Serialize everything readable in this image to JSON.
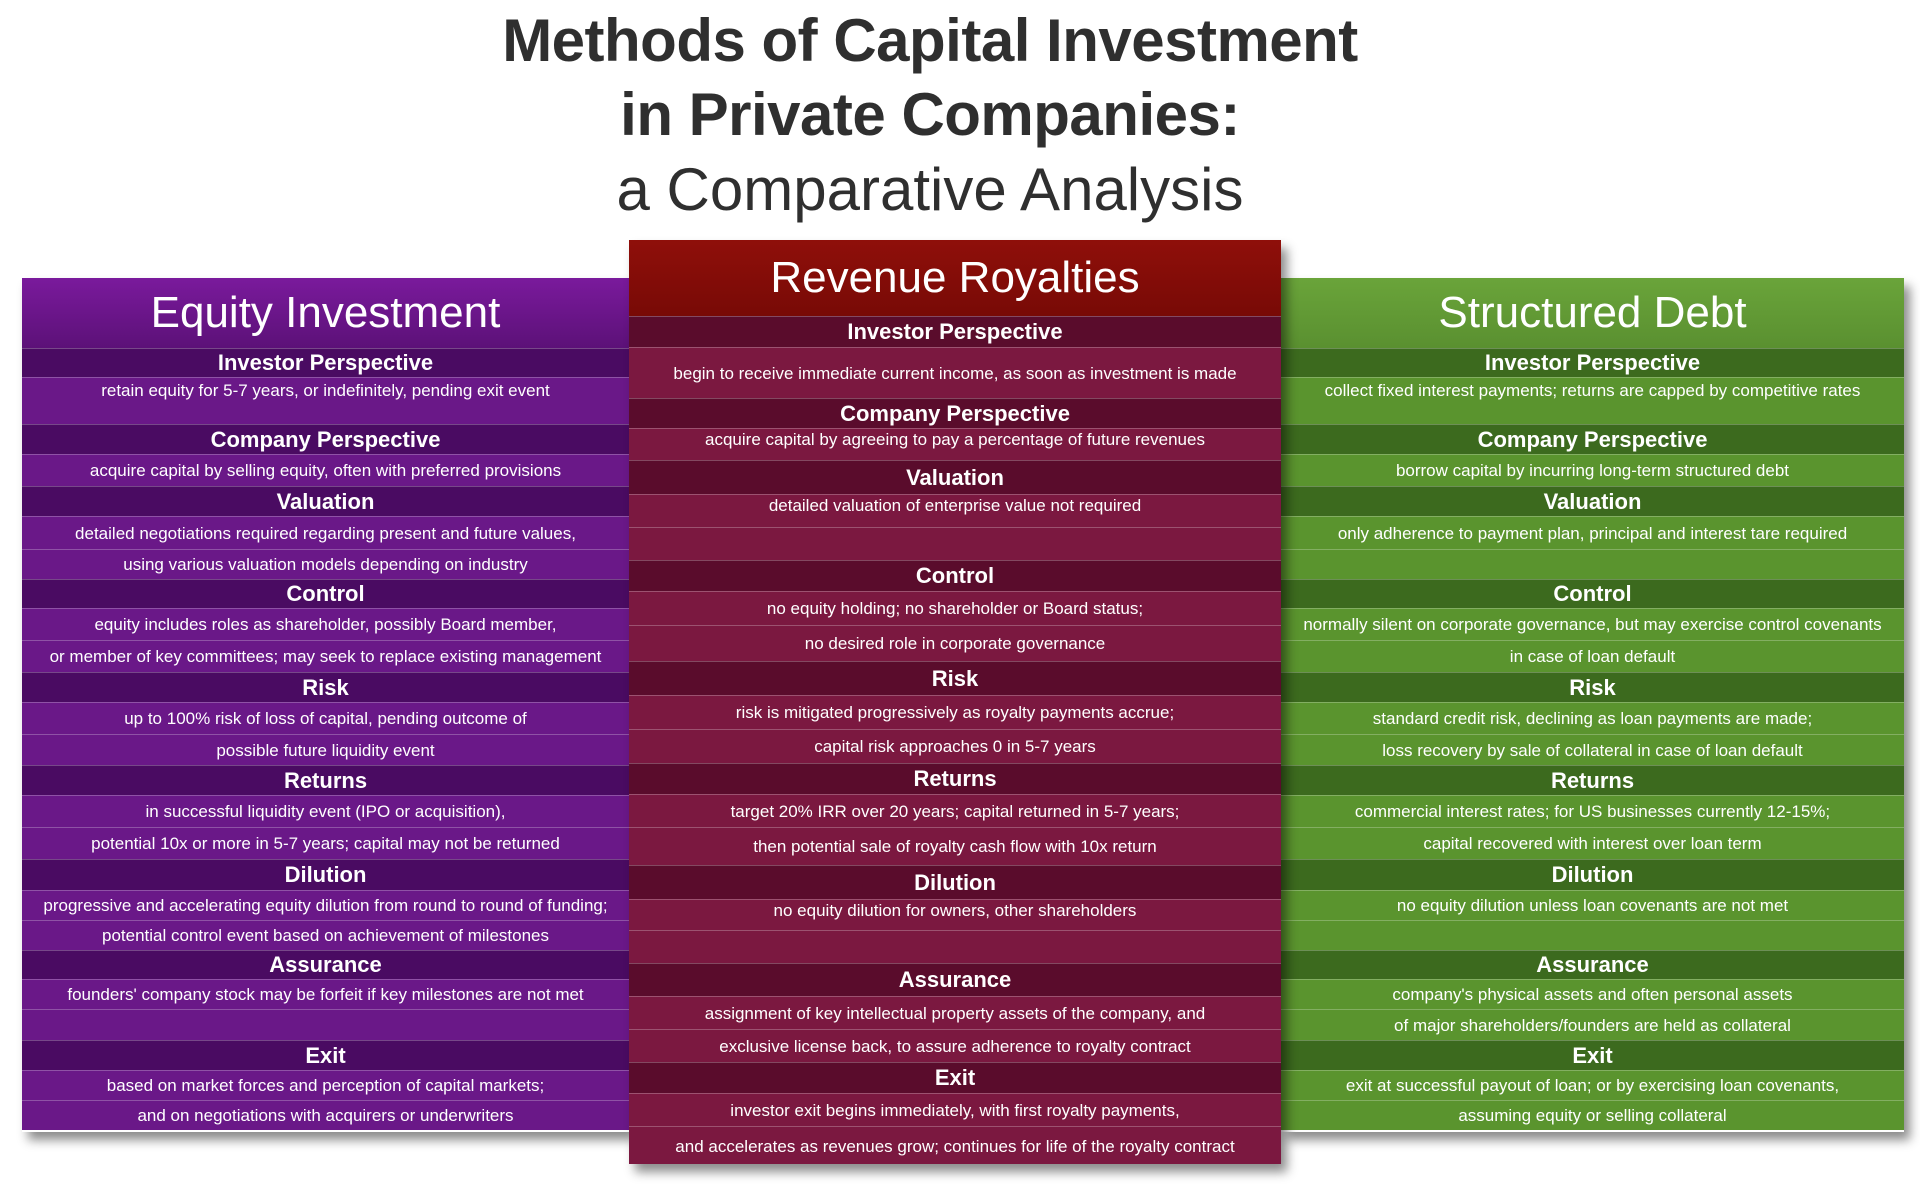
{
  "title": {
    "line1": "Methods of Capital Investment",
    "line2": "in Private Companies:",
    "line3": "a Comparative Analysis"
  },
  "columns": {
    "equity": {
      "title": "Equity Investment",
      "investor_perspective": {
        "heading": "Investor Perspective",
        "lines": [
          "retain equity for 5-7 years, or indefinitely, pending exit event"
        ]
      },
      "company_perspective": {
        "heading": "Company Perspective",
        "lines": [
          "acquire capital by selling equity, often with preferred provisions"
        ]
      },
      "valuation": {
        "heading": "Valuation",
        "lines": [
          "detailed negotiations required regarding present and future values,",
          "using various valuation models depending on industry"
        ]
      },
      "control": {
        "heading": "Control",
        "lines": [
          "equity includes roles as shareholder, possibly Board member,",
          "or member of key committees; may seek to replace existing management"
        ]
      },
      "risk": {
        "heading": "Risk",
        "lines": [
          "up to 100% risk of loss of capital, pending outcome of",
          "possible future liquidity event"
        ]
      },
      "returns": {
        "heading": "Returns",
        "lines": [
          "in successful liquidity event (IPO or acquisition),",
          "potential 10x or more in 5-7 years; capital may not be returned"
        ]
      },
      "dilution": {
        "heading": "Dilution",
        "lines": [
          "progressive and accelerating equity dilution from round to round of funding;",
          "potential control event based on achievement of milestones"
        ]
      },
      "assurance": {
        "heading": "Assurance",
        "lines": [
          "founders' company stock may be forfeit if key milestones are not met",
          ""
        ]
      },
      "exit": {
        "heading": "Exit",
        "lines": [
          "based on market forces and perception of capital markets;",
          "and on negotiations with acquirers or underwriters"
        ]
      }
    },
    "royalty": {
      "title": "Revenue Royalties",
      "investor_perspective": {
        "heading": "Investor Perspective",
        "lines": [
          "begin to receive immediate current income, as soon as investment is made"
        ]
      },
      "company_perspective": {
        "heading": "Company Perspective",
        "lines": [
          "acquire capital by agreeing to pay a percentage of future revenues"
        ]
      },
      "valuation": {
        "heading": "Valuation",
        "lines": [
          "detailed valuation of enterprise value not required",
          ""
        ]
      },
      "control": {
        "heading": "Control",
        "lines": [
          "no equity holding; no shareholder or Board status;",
          "no desired role in corporate governance"
        ]
      },
      "risk": {
        "heading": "Risk",
        "lines": [
          "risk is mitigated progressively as royalty payments accrue;",
          "capital risk approaches 0 in 5-7 years"
        ]
      },
      "returns": {
        "heading": "Returns",
        "lines": [
          "target 20% IRR over 20 years; capital returned in 5-7 years;",
          "then potential sale of royalty cash flow with 10x return"
        ]
      },
      "dilution": {
        "heading": "Dilution",
        "lines": [
          "no equity dilution for owners, other shareholders",
          ""
        ]
      },
      "assurance": {
        "heading": "Assurance",
        "lines": [
          "assignment of key intellectual property assets of the company, and",
          "exclusive license back, to assure adherence to royalty contract"
        ]
      },
      "exit": {
        "heading": "Exit",
        "lines": [
          "investor exit begins immediately, with first royalty payments,",
          "and accelerates as revenues grow; continues for life of the royalty contract"
        ]
      }
    },
    "debt": {
      "title": "Structured Debt",
      "investor_perspective": {
        "heading": "Investor Perspective",
        "lines": [
          "collect fixed interest payments; returns are capped by competitive rates"
        ]
      },
      "company_perspective": {
        "heading": "Company Perspective",
        "lines": [
          "borrow capital by incurring long-term structured debt"
        ]
      },
      "valuation": {
        "heading": "Valuation",
        "lines": [
          "only adherence to payment plan, principal and interest tare required",
          ""
        ]
      },
      "control": {
        "heading": "Control",
        "lines": [
          "normally silent on corporate governance, but may exercise control covenants",
          "in case of loan default"
        ]
      },
      "risk": {
        "heading": "Risk",
        "lines": [
          "standard credit risk, declining as loan payments are made;",
          "loss recovery by sale of collateral in case of loan default"
        ]
      },
      "returns": {
        "heading": "Returns",
        "lines": [
          "commercial interest rates; for US businesses currently 12-15%;",
          "capital recovered with interest over loan term"
        ]
      },
      "dilution": {
        "heading": "Dilution",
        "lines": [
          "no equity dilution unless loan covenants are not met",
          ""
        ]
      },
      "assurance": {
        "heading": "Assurance",
        "lines": [
          "company's physical assets and often personal assets",
          "of major shareholders/founders are held as collateral"
        ]
      },
      "exit": {
        "heading": "Exit",
        "lines": [
          "exit at successful payout of loan; or by exercising loan covenants,",
          "assuming equity or selling collateral"
        ]
      }
    }
  }
}
